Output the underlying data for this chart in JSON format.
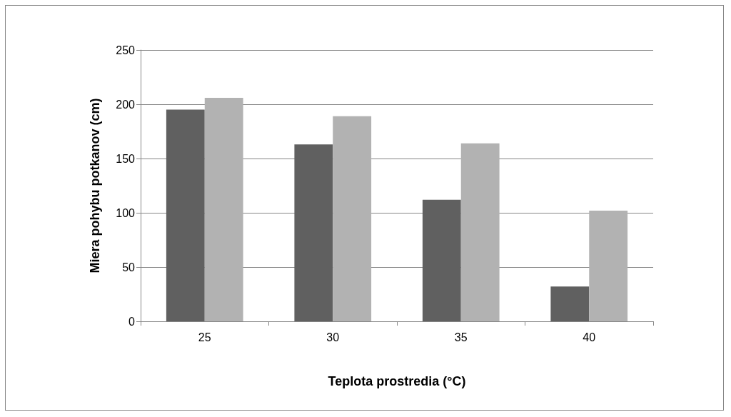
{
  "chart_data": {
    "type": "bar",
    "xlabel": "Teplota prostredia (°C)",
    "ylabel": "Miera pohybu potkanov (cm)",
    "categories": [
      "25",
      "30",
      "35",
      "40"
    ],
    "series": [
      {
        "color": "#606060",
        "values": [
          195,
          163,
          112,
          32
        ]
      },
      {
        "color": "#b2b2b2",
        "values": [
          206,
          189,
          164,
          102
        ]
      }
    ],
    "ylim": [
      0,
      250
    ],
    "yticks": [
      0,
      50,
      100,
      150,
      200,
      250
    ],
    "grid": "y"
  }
}
